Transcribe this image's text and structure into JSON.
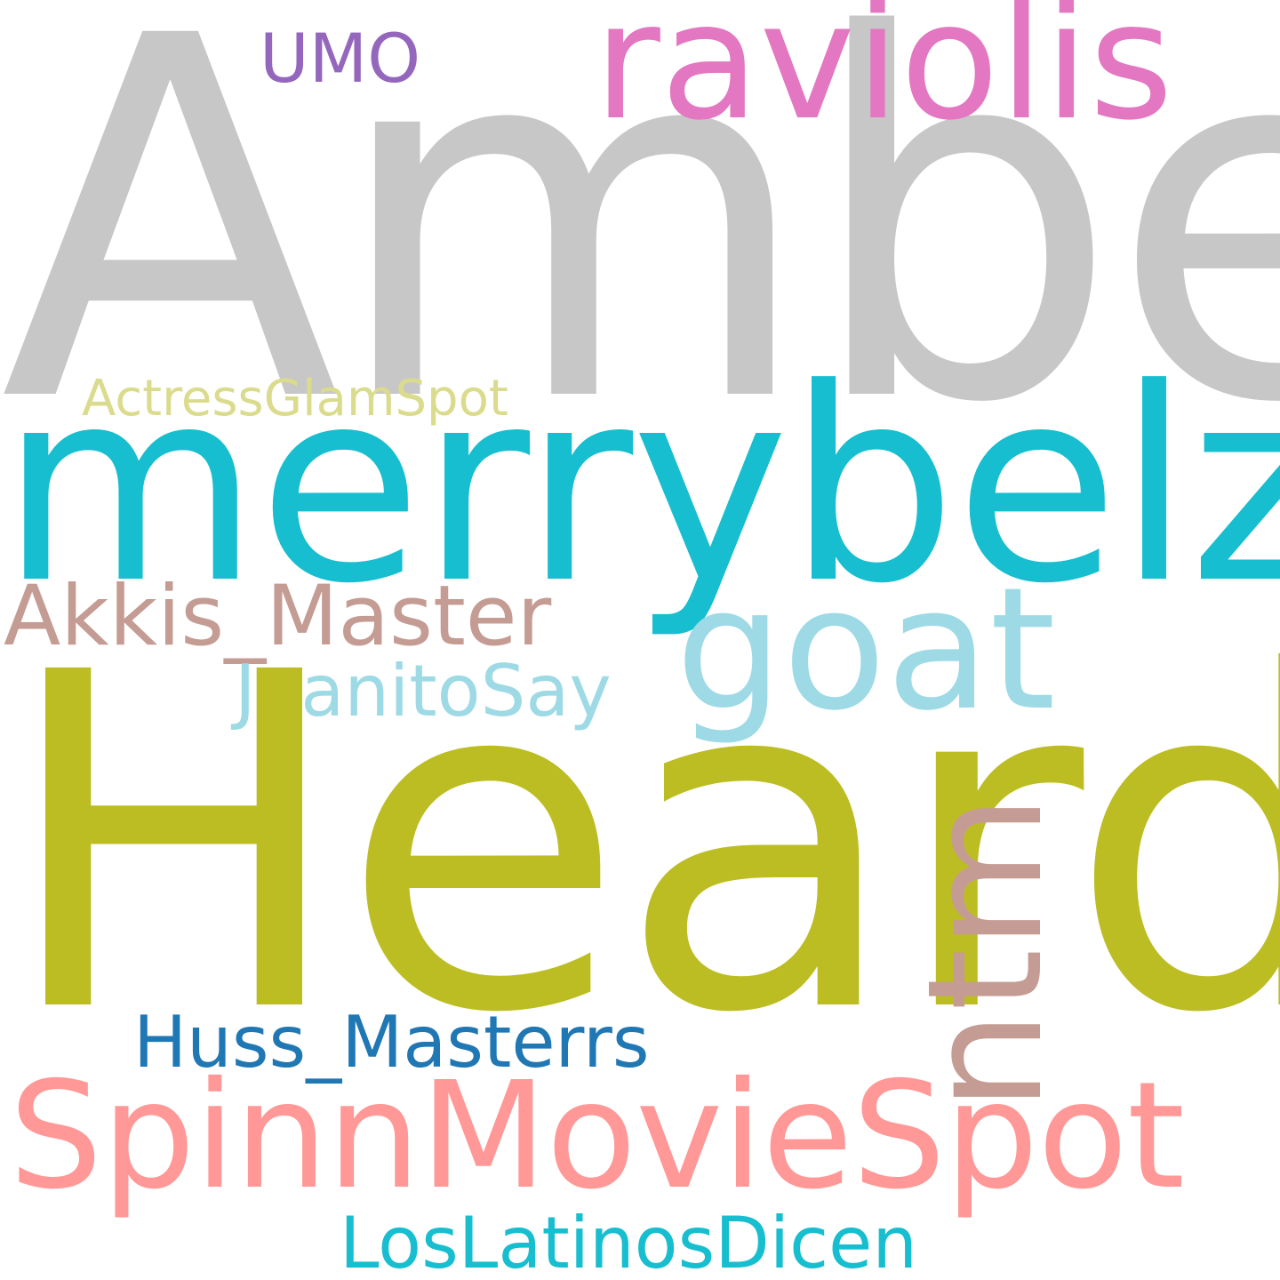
{
  "words": {
    "amber": {
      "text": "Amber",
      "color": "#c7c7c7"
    },
    "heard": {
      "text": "Heard",
      "color": "#bcbd22"
    },
    "merrybelz": {
      "text": "merrybelz",
      "color": "#17becf"
    },
    "raviolis": {
      "text": "raviolis",
      "color": "#e377c2"
    },
    "spinn": {
      "text": "SpinnMovieSpot",
      "color": "#ff9896"
    },
    "goat": {
      "text": "goat",
      "color": "#9edae5"
    },
    "ntm": {
      "text": "ntm",
      "color": "#c49c94"
    },
    "akkis": {
      "text": "Akkis_Master",
      "color": "#c49c94"
    },
    "juanito": {
      "text": "JuanitoSay",
      "color": "#9edae5"
    },
    "huss": {
      "text": "Huss_Masterrs",
      "color": "#1f77b4"
    },
    "latinos": {
      "text": "LosLatinosDicen",
      "color": "#17becf"
    },
    "actress": {
      "text": "ActressGlamSpot",
      "color": "#dbdb8d"
    },
    "umo": {
      "text": "UMO",
      "color": "#9467bd"
    }
  }
}
